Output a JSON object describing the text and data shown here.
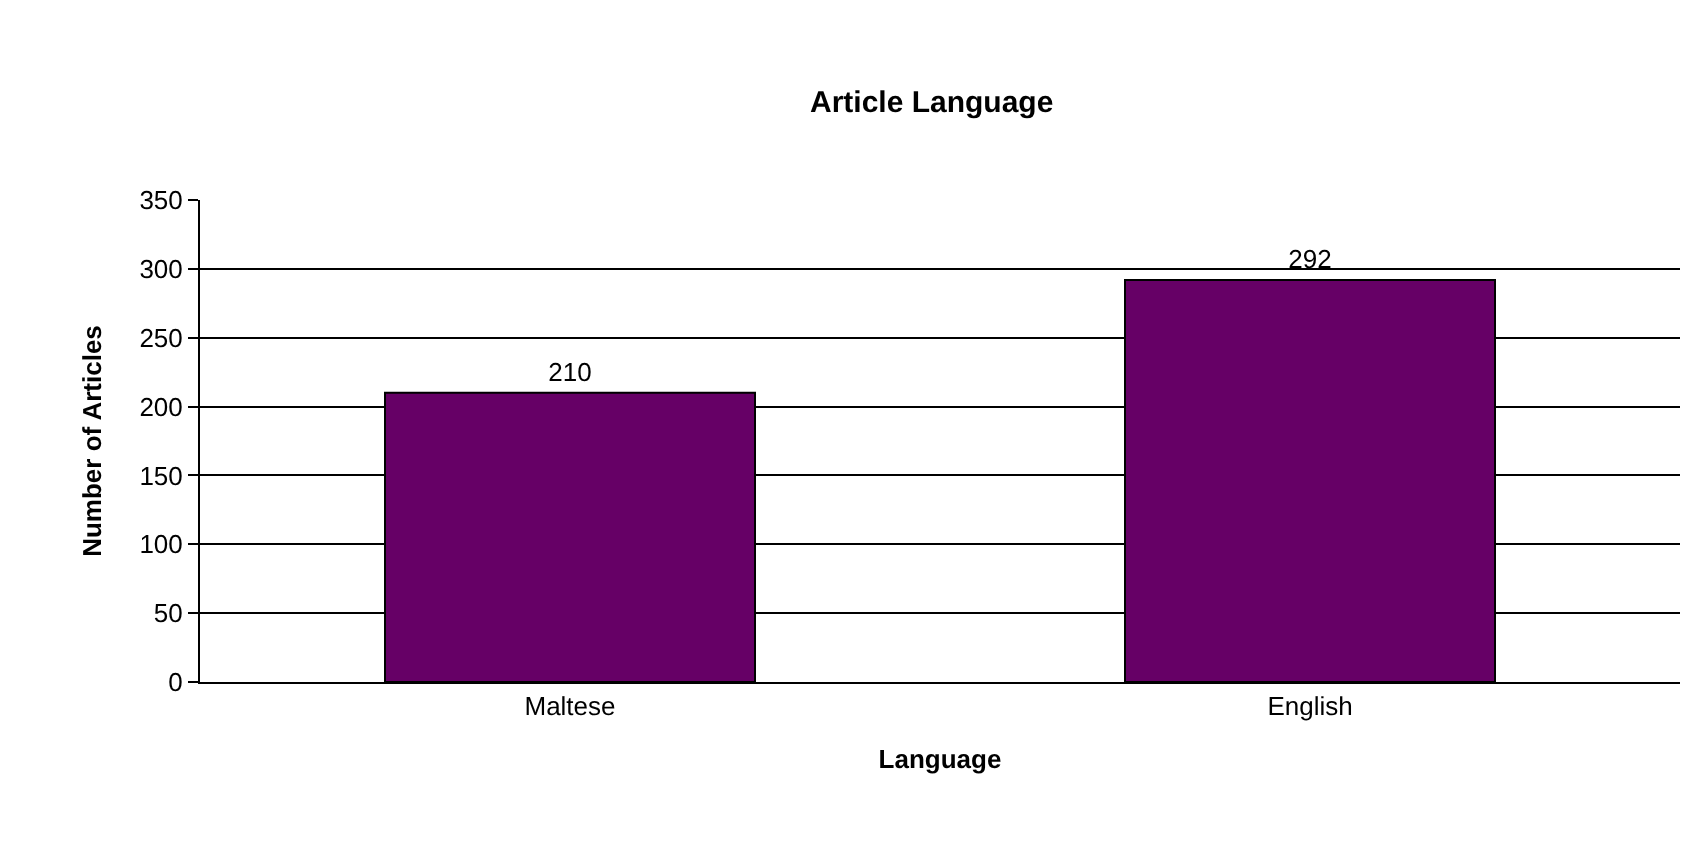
{
  "chart_data": {
    "type": "bar",
    "title": "Article Language",
    "xlabel": "Language",
    "ylabel": "Number of Articles",
    "categories": [
      "Maltese",
      "English"
    ],
    "values": [
      210,
      292
    ],
    "color": "#660066",
    "ylim": [
      0,
      350
    ],
    "yticks": [
      0,
      50,
      100,
      150,
      200,
      250,
      300,
      350
    ],
    "grid": "y",
    "data_labels": true
  }
}
